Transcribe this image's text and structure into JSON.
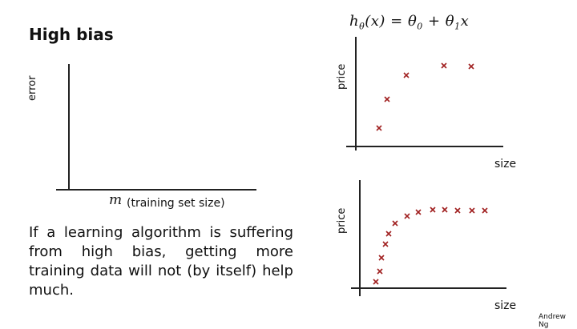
{
  "title": "High bias",
  "formula": "hθ(x) = θ0 + θ1x",
  "left_plot": {
    "ylabel": "error",
    "xlabel_symbol": "m",
    "xlabel_text": "(training set size)"
  },
  "top_plot": {
    "ylabel": "price",
    "xlabel": "size"
  },
  "bottom_plot": {
    "ylabel": "price",
    "xlabel": "size"
  },
  "body_text": "If a learning algorithm is suffering from high bias, getting more training data will not (by itself) help much.",
  "credit": "Andrew Ng",
  "colors": {
    "marker": "#a02020",
    "axis": "#222222"
  }
}
